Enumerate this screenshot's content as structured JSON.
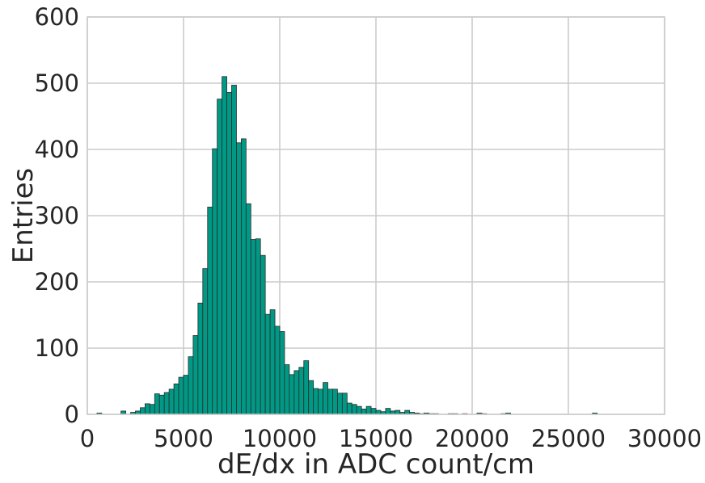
{
  "chart_data": {
    "type": "bar",
    "subtype": "histogram",
    "xlabel": "dE/dx in ADC count/cm",
    "ylabel": "Entries",
    "xlim": [
      0,
      30000
    ],
    "ylim": [
      0,
      600
    ],
    "xticks": [
      0,
      5000,
      10000,
      15000,
      20000,
      25000,
      30000
    ],
    "yticks": [
      0,
      100,
      200,
      300,
      400,
      500,
      600
    ],
    "grid": true,
    "bar_color": "#009985",
    "bin_width": 250,
    "bins": [
      [
        500,
        2
      ],
      [
        1750,
        5
      ],
      [
        2250,
        3
      ],
      [
        2500,
        5
      ],
      [
        2750,
        10
      ],
      [
        3000,
        16
      ],
      [
        3250,
        15
      ],
      [
        3500,
        31
      ],
      [
        3750,
        29
      ],
      [
        4000,
        33
      ],
      [
        4250,
        38
      ],
      [
        4500,
        46
      ],
      [
        4750,
        56
      ],
      [
        5000,
        59
      ],
      [
        5250,
        87
      ],
      [
        5500,
        119
      ],
      [
        5750,
        168
      ],
      [
        6000,
        220
      ],
      [
        6250,
        313
      ],
      [
        6500,
        401
      ],
      [
        6750,
        476
      ],
      [
        7000,
        510
      ],
      [
        7250,
        486
      ],
      [
        7500,
        497
      ],
      [
        7750,
        410
      ],
      [
        8000,
        416
      ],
      [
        8250,
        318
      ],
      [
        8500,
        264
      ],
      [
        8750,
        265
      ],
      [
        9000,
        240
      ],
      [
        9250,
        151
      ],
      [
        9500,
        158
      ],
      [
        9750,
        133
      ],
      [
        10000,
        125
      ],
      [
        10250,
        75
      ],
      [
        10500,
        60
      ],
      [
        10750,
        66
      ],
      [
        11000,
        71
      ],
      [
        11250,
        81
      ],
      [
        11500,
        51
      ],
      [
        11750,
        39
      ],
      [
        12000,
        38
      ],
      [
        12250,
        48
      ],
      [
        12500,
        38
      ],
      [
        12750,
        38
      ],
      [
        13000,
        32
      ],
      [
        13250,
        32
      ],
      [
        13500,
        17
      ],
      [
        13750,
        15
      ],
      [
        14000,
        12
      ],
      [
        14250,
        8
      ],
      [
        14500,
        12
      ],
      [
        14750,
        9
      ],
      [
        15000,
        6
      ],
      [
        15250,
        4
      ],
      [
        15500,
        9
      ],
      [
        15750,
        5
      ],
      [
        16000,
        6
      ],
      [
        16250,
        3
      ],
      [
        16500,
        6
      ],
      [
        16750,
        3
      ],
      [
        17000,
        2
      ],
      [
        17250,
        1
      ],
      [
        17500,
        2
      ],
      [
        17750,
        1
      ],
      [
        18000,
        1
      ],
      [
        18750,
        1
      ],
      [
        19000,
        1
      ],
      [
        19500,
        1
      ],
      [
        20250,
        2
      ],
      [
        20500,
        1
      ],
      [
        21500,
        1
      ],
      [
        21750,
        2
      ],
      [
        26250,
        2
      ]
    ]
  }
}
